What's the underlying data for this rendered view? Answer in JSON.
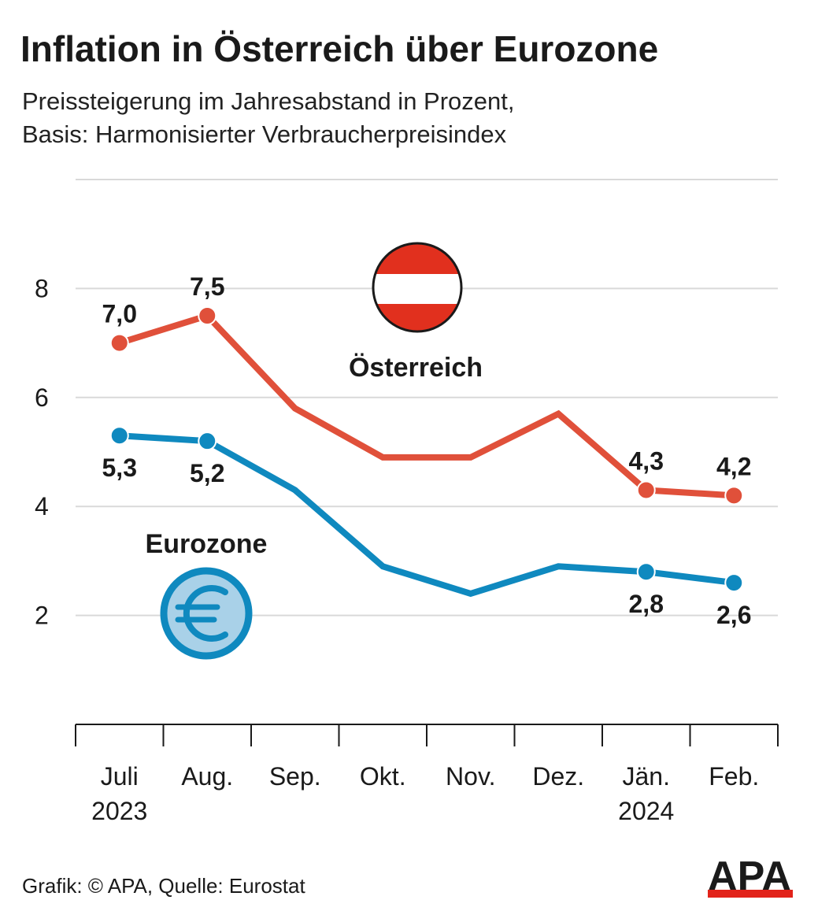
{
  "title": "Inflation in Österreich über Eurozone",
  "subtitle_lines": [
    "Preissteigerung im Jahresabstand in Prozent,",
    "Basis: Harmonisierter Verbraucherpreisindex"
  ],
  "source": "Grafik: © APA, Quelle: Eurostat",
  "logo": "APA",
  "colors": {
    "austria": "#e0503a",
    "eurozone": "#0f89bf",
    "flag_red": "#e1301e",
    "euro_fill": "#a9d1e8",
    "logo_red": "#e2231a",
    "grid": "#d9d9d9"
  },
  "icons": {
    "austria": "austrian-flag-icon",
    "eurozone": "euro-coin-icon"
  },
  "chart_data": {
    "type": "line",
    "title": "Inflation in Österreich über Eurozone",
    "categories": [
      "Juli",
      "Aug.",
      "Sep.",
      "Okt.",
      "Nov.",
      "Dez.",
      "Jän.",
      "Feb."
    ],
    "year_labels": [
      "2023",
      "",
      "",
      "",
      "",
      "",
      "2024",
      ""
    ],
    "xlabel": "",
    "ylabel": "",
    "ylim": [
      0,
      10
    ],
    "yticks": [
      2,
      4,
      6,
      8
    ],
    "grid": true,
    "series": [
      {
        "name": "Österreich",
        "color": "#e0503a",
        "values": [
          7.0,
          7.5,
          5.8,
          4.9,
          4.9,
          5.7,
          4.3,
          4.2
        ],
        "labels": [
          "7,0",
          "7,5",
          "",
          "",
          "",
          "",
          "4,3",
          "4,2"
        ],
        "markers": [
          true,
          true,
          false,
          false,
          false,
          false,
          true,
          true
        ]
      },
      {
        "name": "Eurozone",
        "color": "#0f89bf",
        "values": [
          5.3,
          5.2,
          4.3,
          2.9,
          2.4,
          2.9,
          2.8,
          2.6
        ],
        "labels": [
          "5,3",
          "5,2",
          "",
          "",
          "",
          "",
          "2,8",
          "2,6"
        ],
        "markers": [
          true,
          true,
          false,
          false,
          false,
          false,
          true,
          true
        ]
      }
    ]
  }
}
